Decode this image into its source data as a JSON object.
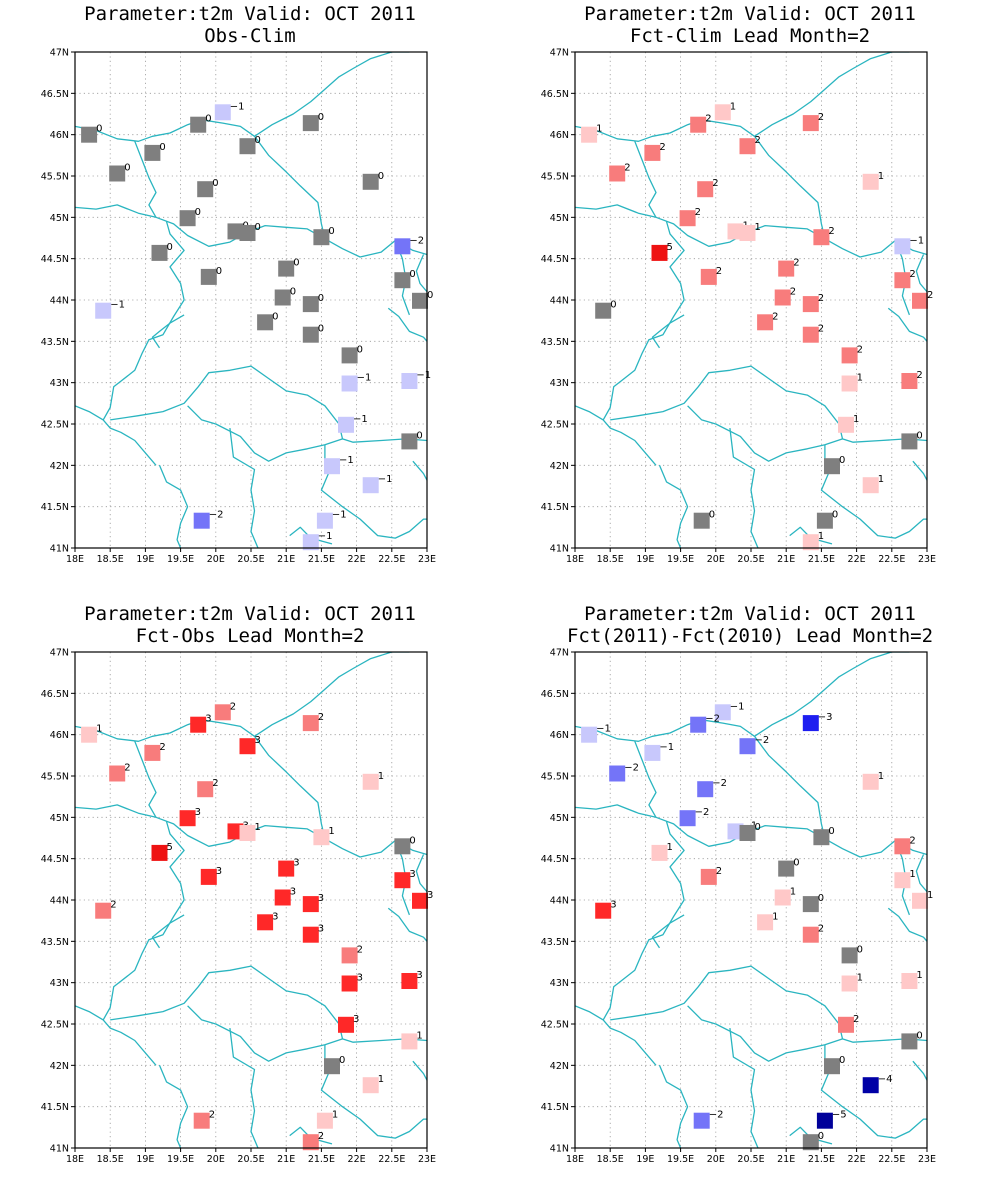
{
  "panels": [
    {
      "id": "obs-clim",
      "title1": "Parameter:t2m Valid: OCT 2011",
      "title2": "Obs-Clim",
      "values": [
        0,
        -1,
        0,
        0,
        0,
        0,
        0,
        0,
        0,
        0,
        0,
        0,
        0,
        0,
        -2,
        0,
        0,
        0,
        0,
        0,
        0,
        -1,
        0,
        0,
        0,
        -1,
        -1,
        -1,
        0,
        -1,
        -1,
        -1,
        -2,
        -1
      ]
    },
    {
      "id": "fct-clim",
      "title1": "Parameter:t2m Valid: OCT 2011",
      "title2": "Fct-Clim Lead Month=2",
      "values": [
        1,
        1,
        2,
        2,
        2,
        2,
        2,
        2,
        1,
        2,
        1,
        1,
        2,
        2,
        -1,
        5,
        2,
        2,
        2,
        2,
        2,
        0,
        2,
        2,
        2,
        1,
        2,
        1,
        0,
        0,
        1,
        0,
        0,
        1
      ]
    },
    {
      "id": "fct-obs",
      "title1": "Parameter:t2m Valid: OCT 2011",
      "title2": "Fct-Obs Lead Month=2",
      "values": [
        1,
        2,
        2,
        3,
        2,
        2,
        3,
        2,
        1,
        3,
        3,
        1,
        1,
        3,
        0,
        5,
        3,
        3,
        3,
        3,
        3,
        2,
        3,
        3,
        2,
        3,
        3,
        3,
        1,
        0,
        1,
        1,
        2,
        2
      ]
    },
    {
      "id": "fct-fct",
      "title1": "Parameter:t2m Valid: OCT 2011",
      "title2": "Fct(2011)-Fct(2010) Lead Month=2",
      "values": [
        -1,
        -1,
        -2,
        -2,
        -3,
        -1,
        -2,
        -2,
        1,
        -2,
        -1,
        0,
        0,
        1,
        2,
        1,
        2,
        0,
        1,
        0,
        1,
        3,
        2,
        1,
        0,
        1,
        1,
        2,
        0,
        0,
        -4,
        -5,
        -2,
        0
      ]
    }
  ],
  "map": {
    "lon_ticks": [
      "18E",
      "18.5E",
      "19E",
      "19.5E",
      "20E",
      "20.5E",
      "21E",
      "21.5E",
      "22E",
      "22.5E",
      "23E"
    ],
    "lat_ticks": [
      "41N",
      "41.5N",
      "42N",
      "42.5N",
      "43N",
      "43.5N",
      "44N",
      "44.5N",
      "45N",
      "45.5N",
      "46N",
      "46.5N",
      "47N"
    ],
    "lon_range": [
      18,
      23
    ],
    "lat_range": [
      41,
      47
    ],
    "gridlines": "dotted",
    "border_color": "#2ab5c0"
  },
  "stations": [
    {
      "lon": 18.2,
      "lat": 46.0
    },
    {
      "lon": 20.1,
      "lat": 46.27
    },
    {
      "lon": 18.6,
      "lat": 45.53
    },
    {
      "lon": 19.75,
      "lat": 46.12
    },
    {
      "lon": 21.35,
      "lat": 46.14
    },
    {
      "lon": 19.1,
      "lat": 45.78
    },
    {
      "lon": 20.45,
      "lat": 45.86
    },
    {
      "lon": 19.85,
      "lat": 45.34
    },
    {
      "lon": 22.2,
      "lat": 45.43
    },
    {
      "lon": 19.6,
      "lat": 44.99
    },
    {
      "lon": 20.28,
      "lat": 44.83
    },
    {
      "lon": 20.45,
      "lat": 44.81
    },
    {
      "lon": 21.5,
      "lat": 44.76
    },
    {
      "lon": 22.65,
      "lat": 44.24
    },
    {
      "lon": 22.65,
      "lat": 44.65
    },
    {
      "lon": 19.2,
      "lat": 44.57
    },
    {
      "lon": 19.9,
      "lat": 44.28
    },
    {
      "lon": 21.0,
      "lat": 44.38
    },
    {
      "lon": 20.95,
      "lat": 44.03
    },
    {
      "lon": 21.35,
      "lat": 43.95
    },
    {
      "lon": 20.7,
      "lat": 43.73
    },
    {
      "lon": 18.4,
      "lat": 43.87
    },
    {
      "lon": 21.35,
      "lat": 43.58
    },
    {
      "lon": 22.9,
      "lat": 43.99
    },
    {
      "lon": 21.9,
      "lat": 43.33
    },
    {
      "lon": 21.9,
      "lat": 42.99
    },
    {
      "lon": 22.75,
      "lat": 43.02
    },
    {
      "lon": 21.85,
      "lat": 42.49
    },
    {
      "lon": 22.75,
      "lat": 42.29
    },
    {
      "lon": 21.65,
      "lat": 41.99
    },
    {
      "lon": 22.2,
      "lat": 41.76
    },
    {
      "lon": 21.55,
      "lat": 41.33
    },
    {
      "lon": 19.8,
      "lat": 41.33
    },
    {
      "lon": 21.35,
      "lat": 41.07
    }
  ],
  "colors": {
    "zero": "#7f7f7f",
    "pos": {
      "1": "#ffc8c8",
      "2": "#f87c7c",
      "3": "#ff2828",
      "5": "#ee1212"
    },
    "neg": {
      "1": "#c8c8fc",
      "2": "#7474f8",
      "3": "#1e1ef0",
      "4": "#0000a6",
      "5": "#00009a"
    }
  },
  "borders": [
    [
      [
        18.0,
        45.12
      ],
      [
        18.3,
        45.1
      ],
      [
        18.6,
        45.15
      ],
      [
        18.9,
        45.05
      ],
      [
        19.15,
        45.0
      ],
      [
        19.4,
        44.92
      ],
      [
        19.6,
        44.78
      ],
      [
        19.9,
        44.65
      ],
      [
        20.2,
        44.7
      ],
      [
        20.45,
        44.82
      ],
      [
        20.7,
        44.9
      ],
      [
        21.0,
        44.88
      ],
      [
        21.3,
        44.86
      ],
      [
        21.55,
        44.74
      ],
      [
        21.8,
        44.62
      ],
      [
        22.05,
        44.52
      ],
      [
        22.35,
        44.58
      ],
      [
        22.55,
        44.72
      ],
      [
        22.8,
        44.6
      ],
      [
        23.0,
        44.55
      ]
    ],
    [
      [
        18.0,
        46.1
      ],
      [
        18.3,
        46.05
      ],
      [
        18.6,
        45.95
      ],
      [
        18.9,
        45.92
      ],
      [
        19.1,
        45.98
      ],
      [
        19.35,
        46.02
      ],
      [
        19.6,
        46.12
      ],
      [
        19.8,
        46.18
      ],
      [
        20.1,
        46.14
      ],
      [
        20.35,
        46.1
      ],
      [
        20.55,
        45.98
      ],
      [
        20.75,
        45.75
      ],
      [
        21.0,
        45.55
      ],
      [
        21.2,
        45.38
      ],
      [
        21.45,
        45.18
      ],
      [
        21.5,
        44.92
      ],
      [
        21.55,
        44.74
      ]
    ],
    [
      [
        20.55,
        45.98
      ],
      [
        20.8,
        46.12
      ],
      [
        21.1,
        46.25
      ],
      [
        21.35,
        46.4
      ],
      [
        21.55,
        46.55
      ],
      [
        21.75,
        46.7
      ],
      [
        21.95,
        46.8
      ],
      [
        22.2,
        46.92
      ],
      [
        22.5,
        47.0
      ],
      [
        22.75,
        47.0
      ]
    ],
    [
      [
        18.85,
        45.92
      ],
      [
        18.95,
        45.7
      ],
      [
        19.05,
        45.48
      ],
      [
        19.15,
        45.3
      ],
      [
        19.05,
        45.15
      ],
      [
        19.15,
        45.0
      ]
    ],
    [
      [
        19.3,
        44.95
      ],
      [
        19.35,
        44.8
      ],
      [
        19.55,
        44.6
      ],
      [
        19.35,
        44.4
      ],
      [
        19.5,
        44.2
      ],
      [
        19.55,
        44.0
      ],
      [
        19.4,
        43.8
      ],
      [
        19.25,
        43.58
      ],
      [
        19.05,
        43.52
      ],
      [
        18.95,
        43.35
      ],
      [
        18.85,
        43.15
      ],
      [
        18.55,
        42.95
      ],
      [
        18.5,
        42.7
      ],
      [
        18.4,
        42.55
      ]
    ],
    [
      [
        18.0,
        42.72
      ],
      [
        18.2,
        42.65
      ],
      [
        18.4,
        42.55
      ],
      [
        18.5,
        42.45
      ],
      [
        18.65,
        42.4
      ],
      [
        18.85,
        42.3
      ],
      [
        19.0,
        42.15
      ],
      [
        19.15,
        42.0
      ]
    ],
    [
      [
        18.5,
        42.55
      ],
      [
        18.9,
        42.6
      ],
      [
        19.25,
        42.65
      ],
      [
        19.55,
        42.75
      ],
      [
        19.75,
        42.95
      ],
      [
        19.9,
        43.12
      ],
      [
        20.2,
        43.15
      ],
      [
        20.5,
        43.2
      ],
      [
        20.75,
        43.05
      ],
      [
        21.0,
        42.9
      ],
      [
        21.3,
        42.85
      ],
      [
        21.55,
        42.72
      ],
      [
        21.75,
        42.5
      ],
      [
        21.8,
        42.32
      ],
      [
        21.95,
        42.28
      ],
      [
        22.35,
        42.3
      ],
      [
        22.7,
        42.32
      ],
      [
        23.0,
        42.3
      ]
    ],
    [
      [
        19.2,
        43.42
      ],
      [
        19.1,
        43.55
      ],
      [
        19.2,
        43.62
      ],
      [
        19.35,
        43.72
      ],
      [
        19.55,
        43.82
      ]
    ],
    [
      [
        19.6,
        42.72
      ],
      [
        19.8,
        42.55
      ],
      [
        20.0,
        42.5
      ],
      [
        20.35,
        42.35
      ],
      [
        20.55,
        42.15
      ],
      [
        20.75,
        42.05
      ],
      [
        21.0,
        42.15
      ],
      [
        21.3,
        42.2
      ],
      [
        21.55,
        42.25
      ],
      [
        21.8,
        42.32
      ]
    ],
    [
      [
        20.2,
        42.45
      ],
      [
        20.25,
        42.1
      ],
      [
        20.55,
        41.95
      ],
      [
        20.5,
        41.7
      ],
      [
        20.55,
        41.45
      ],
      [
        20.5,
        41.2
      ],
      [
        20.6,
        41.0
      ]
    ],
    [
      [
        19.2,
        42.0
      ],
      [
        19.3,
        41.8
      ],
      [
        19.5,
        41.7
      ],
      [
        19.6,
        41.5
      ],
      [
        19.5,
        41.3
      ],
      [
        19.45,
        41.1
      ],
      [
        19.5,
        41.0
      ]
    ],
    [
      [
        21.55,
        42.25
      ],
      [
        21.55,
        42.05
      ],
      [
        21.6,
        41.9
      ],
      [
        21.5,
        41.7
      ],
      [
        21.8,
        41.5
      ],
      [
        22.05,
        41.35
      ],
      [
        22.3,
        41.15
      ],
      [
        22.55,
        41.12
      ],
      [
        22.75,
        41.2
      ],
      [
        22.95,
        41.35
      ],
      [
        23.0,
        41.35
      ]
    ],
    [
      [
        21.05,
        41.15
      ],
      [
        21.2,
        41.25
      ],
      [
        21.35,
        41.12
      ],
      [
        21.65,
        41.05
      ]
    ],
    [
      [
        22.8,
        42.05
      ],
      [
        22.95,
        41.9
      ],
      [
        23.0,
        41.82
      ]
    ],
    [
      [
        22.45,
        43.9
      ],
      [
        22.6,
        43.8
      ],
      [
        22.75,
        43.62
      ],
      [
        22.95,
        43.55
      ],
      [
        23.0,
        43.5
      ]
    ],
    [
      [
        22.55,
        44.72
      ],
      [
        22.65,
        44.5
      ],
      [
        22.7,
        44.25
      ],
      [
        22.65,
        44.05
      ],
      [
        22.75,
        43.82
      ]
    ],
    [
      [
        22.95,
        44.55
      ],
      [
        22.85,
        44.35
      ],
      [
        22.9,
        44.2
      ],
      [
        23.0,
        44.1
      ]
    ]
  ]
}
